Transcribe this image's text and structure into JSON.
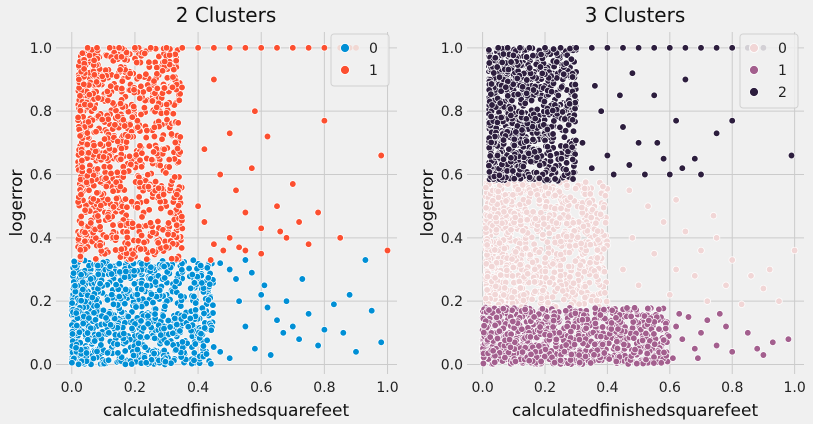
{
  "chart_data": [
    {
      "type": "scatter",
      "title": "2 Clusters",
      "xlabel": "calculatedfinishedsquarefeet",
      "ylabel": "logerror",
      "xlim": [
        -0.05,
        1.03
      ],
      "ylim": [
        -0.03,
        1.05
      ],
      "xticks": [
        "0.0",
        "0.2",
        "0.4",
        "0.6",
        "0.8",
        "1.0"
      ],
      "yticks": [
        "0.0",
        "0.2",
        "0.4",
        "0.6",
        "0.8",
        "1.0"
      ],
      "grid": true,
      "legend_position": "top-right",
      "series": [
        {
          "name": "0",
          "color": "#008fd5",
          "dense_region": {
            "x": [
              0.0,
              0.45
            ],
            "y": [
              0.0,
              0.33
            ]
          },
          "tail_points": [
            [
              0.47,
              0.32
            ],
            [
              0.5,
              0.3
            ],
            [
              0.52,
              0.27
            ],
            [
              0.55,
              0.33
            ],
            [
              0.57,
              0.29
            ],
            [
              0.6,
              0.22
            ],
            [
              0.62,
              0.18
            ],
            [
              0.65,
              0.14
            ],
            [
              0.68,
              0.2
            ],
            [
              0.7,
              0.12
            ],
            [
              0.72,
              0.08
            ],
            [
              0.75,
              0.16
            ],
            [
              0.78,
              0.06
            ],
            [
              0.8,
              0.11
            ],
            [
              0.83,
              0.19
            ],
            [
              0.86,
              0.1
            ],
            [
              0.88,
              0.22
            ],
            [
              0.9,
              0.04
            ],
            [
              0.93,
              0.33
            ],
            [
              0.95,
              0.17
            ],
            [
              0.98,
              0.07
            ],
            [
              0.58,
              0.05
            ],
            [
              0.63,
              0.03
            ],
            [
              0.5,
              0.02
            ],
            [
              0.47,
              0.04
            ],
            [
              0.55,
              0.12
            ],
            [
              0.67,
              0.1
            ],
            [
              0.73,
              0.27
            ],
            [
              0.53,
              0.2
            ],
            [
              0.61,
              0.25
            ]
          ]
        },
        {
          "name": "1",
          "color": "#fc4f30",
          "dense_region": {
            "x": [
              0.02,
              0.35
            ],
            "y": [
              0.33,
              1.0
            ]
          },
          "tail_points": [
            [
              0.4,
              0.5
            ],
            [
              0.42,
              0.45
            ],
            [
              0.45,
              0.38
            ],
            [
              0.48,
              0.36
            ],
            [
              0.5,
              0.4
            ],
            [
              0.52,
              0.55
            ],
            [
              0.55,
              0.48
            ],
            [
              0.57,
              0.62
            ],
            [
              0.6,
              0.43
            ],
            [
              0.62,
              0.72
            ],
            [
              0.65,
              0.5
            ],
            [
              0.68,
              0.4
            ],
            [
              0.7,
              0.57
            ],
            [
              0.72,
              0.45
            ],
            [
              0.75,
              0.38
            ],
            [
              0.78,
              0.48
            ],
            [
              0.8,
              0.77
            ],
            [
              0.85,
              0.4
            ],
            [
              0.98,
              0.66
            ],
            [
              1.0,
              0.36
            ],
            [
              0.58,
              0.8
            ],
            [
              0.55,
              0.36
            ],
            [
              0.45,
              0.9
            ],
            [
              0.5,
              0.73
            ],
            [
              0.6,
              0.35
            ],
            [
              0.47,
              0.6
            ],
            [
              0.42,
              0.68
            ],
            [
              0.66,
              0.42
            ],
            [
              0.53,
              0.37
            ],
            [
              0.44,
              0.33
            ]
          ],
          "top_row": [
            0.05,
            0.08,
            0.12,
            0.15,
            0.2,
            0.25,
            0.3,
            0.35,
            0.4,
            0.45,
            0.5,
            0.55,
            0.6,
            0.65,
            0.7,
            0.75,
            0.8,
            0.85,
            0.88,
            0.9
          ]
        }
      ]
    },
    {
      "type": "scatter",
      "title": "3 Clusters",
      "xlabel": "calculatedfinishedsquarefeet",
      "ylabel": "logerror",
      "xlim": [
        -0.05,
        1.03
      ],
      "ylim": [
        -0.03,
        1.05
      ],
      "xticks": [
        "0.0",
        "0.2",
        "0.4",
        "0.6",
        "0.8",
        "1.0"
      ],
      "yticks": [
        "0.0",
        "0.2",
        "0.4",
        "0.6",
        "0.8",
        "1.0"
      ],
      "grid": true,
      "legend_position": "top-right",
      "series": [
        {
          "name": "0",
          "color": "#f1d6d6",
          "dense_region": {
            "x": [
              0.01,
              0.4
            ],
            "y": [
              0.18,
              0.58
            ]
          },
          "tail_points": [
            [
              0.45,
              0.3
            ],
            [
              0.48,
              0.4
            ],
            [
              0.5,
              0.25
            ],
            [
              0.53,
              0.5
            ],
            [
              0.55,
              0.35
            ],
            [
              0.58,
              0.45
            ],
            [
              0.6,
              0.22
            ],
            [
              0.62,
              0.3
            ],
            [
              0.65,
              0.42
            ],
            [
              0.68,
              0.28
            ],
            [
              0.7,
              0.36
            ],
            [
              0.72,
              0.2
            ],
            [
              0.75,
              0.4
            ],
            [
              0.78,
              0.25
            ],
            [
              0.8,
              0.33
            ],
            [
              0.83,
              0.19
            ],
            [
              0.86,
              0.28
            ],
            [
              0.9,
              0.24
            ],
            [
              0.92,
              0.3
            ],
            [
              0.95,
              0.2
            ],
            [
              1.0,
              0.36
            ],
            [
              0.74,
              0.47
            ],
            [
              0.62,
              0.52
            ],
            [
              0.47,
              0.55
            ]
          ]
        },
        {
          "name": "1",
          "color": "#a35f8e",
          "dense_region": {
            "x": [
              0.0,
              0.6
            ],
            "y": [
              0.0,
              0.18
            ]
          },
          "tail_points": [
            [
              0.62,
              0.12
            ],
            [
              0.64,
              0.08
            ],
            [
              0.66,
              0.15
            ],
            [
              0.68,
              0.05
            ],
            [
              0.7,
              0.1
            ],
            [
              0.72,
              0.14
            ],
            [
              0.75,
              0.06
            ],
            [
              0.78,
              0.12
            ],
            [
              0.8,
              0.04
            ],
            [
              0.85,
              0.1
            ],
            [
              0.88,
              0.05
            ],
            [
              0.9,
              0.03
            ],
            [
              0.93,
              0.07
            ],
            [
              0.98,
              0.08
            ],
            [
              0.61,
              0.02
            ],
            [
              0.63,
              0.16
            ],
            [
              0.76,
              0.16
            ],
            [
              0.69,
              0.02
            ]
          ]
        },
        {
          "name": "2",
          "color": "#2d1e3e",
          "dense_region": {
            "x": [
              0.02,
              0.3
            ],
            "y": [
              0.58,
              1.0
            ]
          },
          "tail_points": [
            [
              0.32,
              0.7
            ],
            [
              0.35,
              0.62
            ],
            [
              0.38,
              0.8
            ],
            [
              0.4,
              0.66
            ],
            [
              0.42,
              0.6
            ],
            [
              0.45,
              0.75
            ],
            [
              0.47,
              0.63
            ],
            [
              0.5,
              0.7
            ],
            [
              0.52,
              0.6
            ],
            [
              0.55,
              0.85
            ],
            [
              0.58,
              0.65
            ],
            [
              0.6,
              0.6
            ],
            [
              0.62,
              0.77
            ],
            [
              0.65,
              0.9
            ],
            [
              0.68,
              0.65
            ],
            [
              0.7,
              0.6
            ],
            [
              0.75,
              0.73
            ],
            [
              0.8,
              0.77
            ],
            [
              0.99,
              0.66
            ],
            [
              0.48,
              0.92
            ],
            [
              0.36,
              0.88
            ],
            [
              0.56,
              0.7
            ],
            [
              0.44,
              0.85
            ],
            [
              0.64,
              0.62
            ]
          ],
          "top_row": [
            0.05,
            0.08,
            0.12,
            0.15,
            0.2,
            0.25,
            0.3,
            0.35,
            0.4,
            0.45,
            0.5,
            0.55,
            0.6,
            0.65,
            0.7,
            0.75,
            0.8,
            0.85,
            0.9
          ]
        }
      ]
    }
  ]
}
